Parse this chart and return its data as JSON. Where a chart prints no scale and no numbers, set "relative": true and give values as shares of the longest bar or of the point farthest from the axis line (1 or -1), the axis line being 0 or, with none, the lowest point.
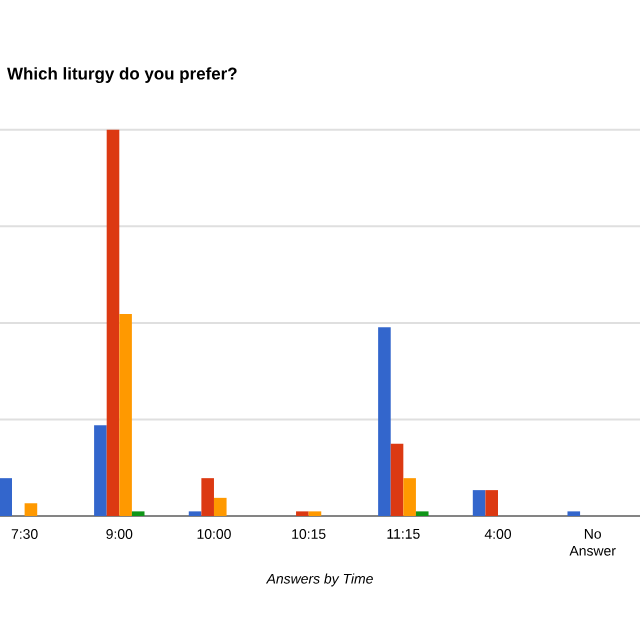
{
  "chart_data": {
    "type": "bar",
    "title": "Which liturgy do you prefer?",
    "xlabel": "Answers by Time",
    "categories": [
      "7:30",
      "9:00",
      "10:00",
      "10:15",
      "11:15",
      "4:00",
      "No Answer"
    ],
    "relative": true,
    "grid": "y",
    "series": [
      {
        "color": "#3366cc",
        "values": [
          0.098,
          0.235,
          0.012,
          0,
          0.489,
          0.067,
          0.012
        ]
      },
      {
        "color": "#dc3912",
        "values": [
          0,
          1,
          0.098,
          0.012,
          0.187,
          0.067,
          0
        ]
      },
      {
        "color": "#ff9900",
        "values": [
          0.033,
          0.523,
          0.047,
          0.012,
          0.098,
          0,
          0
        ]
      },
      {
        "color": "#109618",
        "values": [
          0,
          0.012,
          0,
          0,
          0.012,
          0,
          0
        ]
      }
    ]
  }
}
